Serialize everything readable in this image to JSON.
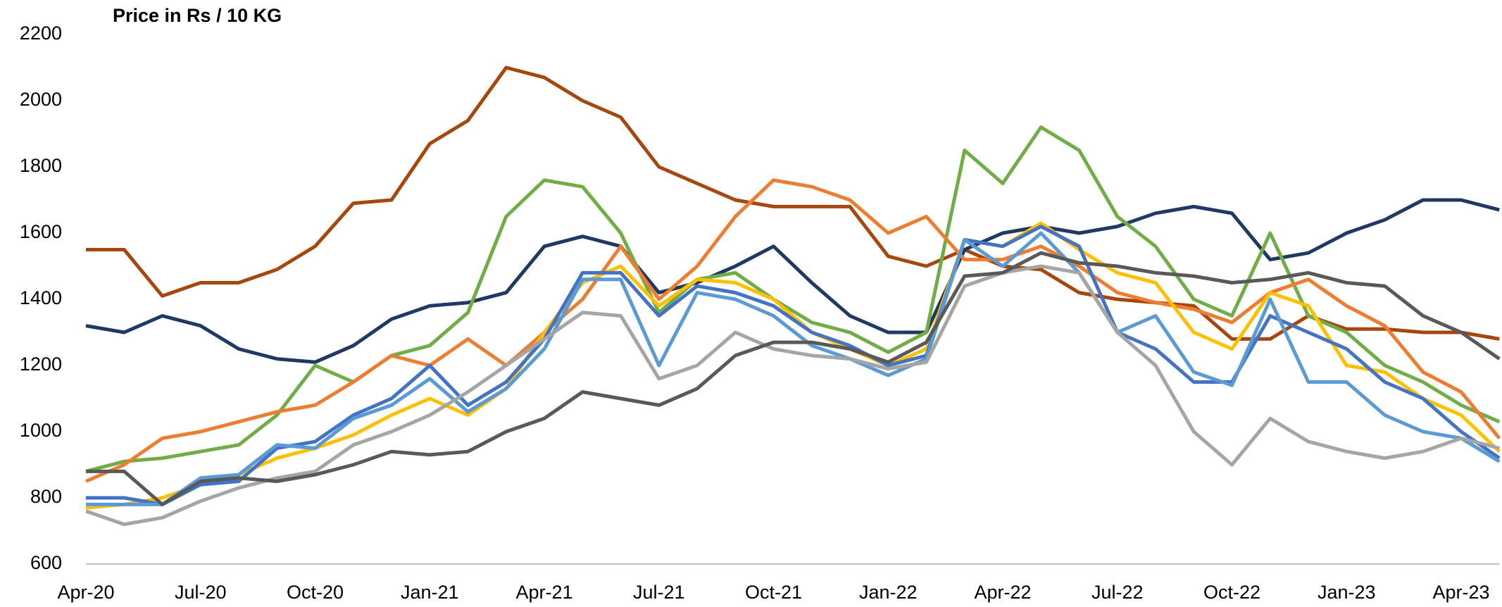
{
  "chart_data": {
    "type": "line",
    "title": "Price in Rs / 10 KG",
    "categories": [
      "Apr-20",
      null,
      null,
      "Jul-20",
      null,
      null,
      "Oct-20",
      null,
      null,
      "Jan-21",
      null,
      null,
      "Apr-21",
      null,
      null,
      "Jul-21",
      null,
      null,
      "Oct-21",
      null,
      null,
      "Jan-22",
      null,
      null,
      "Apr-22",
      null,
      null,
      "Jul-22",
      null,
      null,
      "Oct-22",
      null,
      null,
      "Jan-23",
      null,
      null,
      "Apr-23",
      null
    ],
    "ylim": [
      600,
      2200
    ],
    "yticks": [
      600,
      800,
      1000,
      1200,
      1400,
      1600,
      1800,
      2000,
      2200
    ],
    "grid": false,
    "series": [
      {
        "color": "#a5470e",
        "values": [
          1550,
          1550,
          1410,
          1450,
          1450,
          1490,
          1560,
          1690,
          1700,
          1870,
          1940,
          2100,
          2070,
          2000,
          1950,
          1800,
          1750,
          1700,
          1680,
          1680,
          1680,
          1530,
          1500,
          1550,
          1500,
          1490,
          1420,
          1400,
          1390,
          1380,
          1280,
          1280,
          1350,
          1310,
          1310,
          1300,
          1300,
          1280
        ]
      },
      {
        "color": "#203864",
        "values": [
          1320,
          1300,
          1350,
          1320,
          1250,
          1220,
          1210,
          1260,
          1340,
          1380,
          1390,
          1420,
          1560,
          1590,
          1560,
          1420,
          1450,
          1500,
          1560,
          1450,
          1350,
          1300,
          1300,
          1550,
          1600,
          1620,
          1600,
          1620,
          1660,
          1680,
          1660,
          1520,
          1540,
          1600,
          1640,
          1700,
          1700,
          1670
        ]
      },
      {
        "color": "#70ad47",
        "values": [
          880,
          910,
          920,
          940,
          960,
          1050,
          1200,
          1150,
          1230,
          1260,
          1360,
          1650,
          1760,
          1740,
          1600,
          1360,
          1460,
          1480,
          1400,
          1330,
          1300,
          1240,
          1300,
          1850,
          1750,
          1920,
          1850,
          1650,
          1560,
          1400,
          1350,
          1600,
          1350,
          1300,
          1200,
          1150,
          1080,
          1030
        ]
      },
      {
        "color": "#ed7d31",
        "values": [
          850,
          900,
          980,
          1000,
          1030,
          1060,
          1080,
          1150,
          1230,
          1200,
          1280,
          1200,
          1300,
          1400,
          1560,
          1400,
          1500,
          1650,
          1760,
          1740,
          1700,
          1600,
          1650,
          1520,
          1520,
          1560,
          1500,
          1420,
          1390,
          1370,
          1330,
          1420,
          1460,
          1380,
          1320,
          1180,
          1120,
          980
        ]
      },
      {
        "color": "#ffc000",
        "values": [
          770,
          780,
          800,
          840,
          870,
          920,
          950,
          990,
          1050,
          1100,
          1050,
          1130,
          1300,
          1450,
          1500,
          1380,
          1460,
          1450,
          1400,
          1300,
          1250,
          1200,
          1250,
          1580,
          1560,
          1630,
          1550,
          1480,
          1450,
          1300,
          1250,
          1420,
          1380,
          1200,
          1180,
          1100,
          1050,
          940
        ]
      },
      {
        "color": "#4472c4",
        "values": [
          800,
          800,
          780,
          840,
          850,
          950,
          970,
          1050,
          1100,
          1200,
          1080,
          1150,
          1280,
          1480,
          1480,
          1350,
          1440,
          1420,
          1380,
          1300,
          1260,
          1200,
          1230,
          1580,
          1560,
          1620,
          1560,
          1300,
          1250,
          1150,
          1150,
          1350,
          1300,
          1250,
          1150,
          1100,
          1000,
          920
        ]
      },
      {
        "color": "#5b9bd5",
        "values": [
          780,
          780,
          780,
          860,
          870,
          960,
          950,
          1040,
          1080,
          1160,
          1060,
          1130,
          1250,
          1460,
          1460,
          1200,
          1420,
          1400,
          1350,
          1260,
          1220,
          1170,
          1220,
          1580,
          1500,
          1600,
          1480,
          1300,
          1350,
          1180,
          1140,
          1400,
          1150,
          1150,
          1050,
          1000,
          980,
          910
        ]
      },
      {
        "color": "#a5a5a5",
        "values": [
          760,
          720,
          740,
          790,
          830,
          860,
          880,
          960,
          1000,
          1050,
          1120,
          1200,
          1280,
          1360,
          1350,
          1160,
          1200,
          1300,
          1250,
          1230,
          1220,
          1190,
          1210,
          1440,
          1480,
          1500,
          1480,
          1300,
          1200,
          1000,
          900,
          1040,
          970,
          940,
          920,
          940,
          980,
          950
        ]
      },
      {
        "color": "#595959",
        "values": [
          880,
          880,
          780,
          850,
          860,
          850,
          870,
          900,
          940,
          930,
          940,
          1000,
          1040,
          1120,
          1100,
          1080,
          1130,
          1230,
          1270,
          1270,
          1250,
          1210,
          1270,
          1470,
          1480,
          1540,
          1510,
          1500,
          1480,
          1470,
          1450,
          1460,
          1480,
          1450,
          1440,
          1350,
          1300,
          1220
        ]
      }
    ]
  }
}
